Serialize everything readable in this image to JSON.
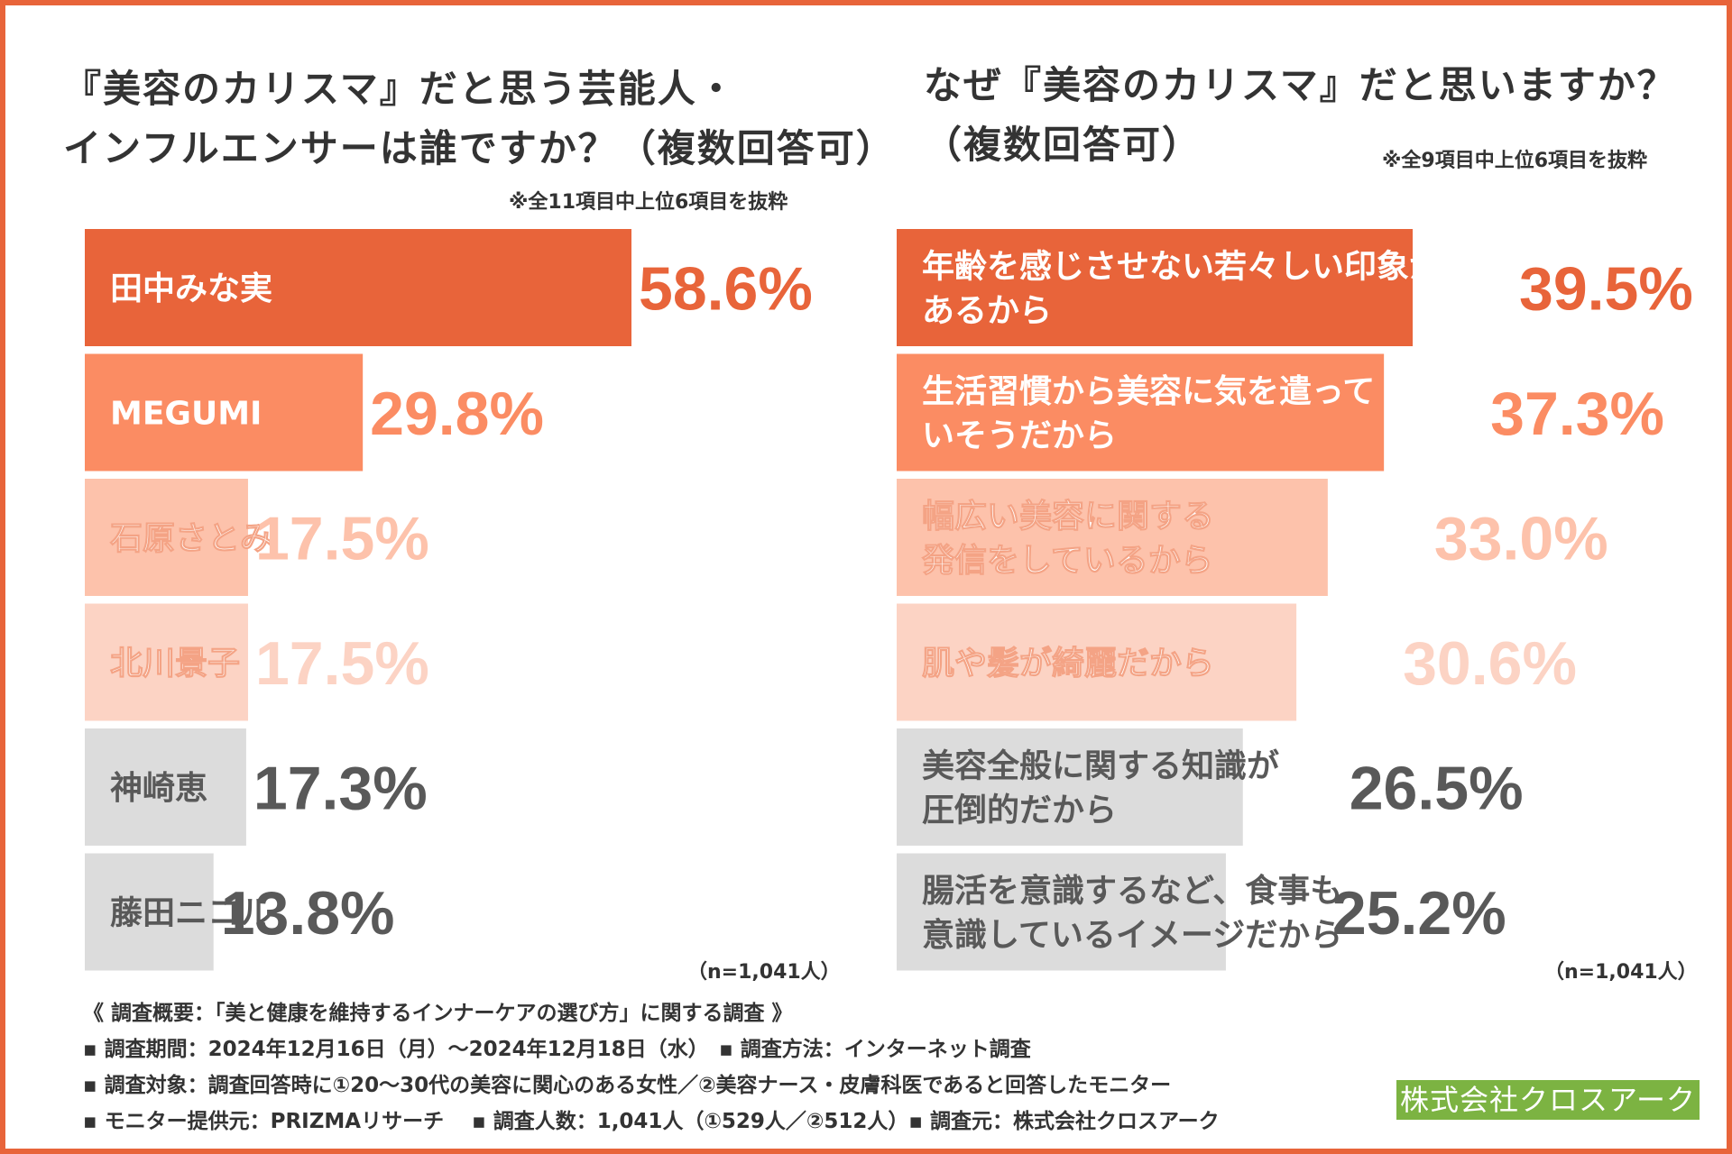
{
  "colors": {
    "frame": "#e8643a",
    "bar_tiers": [
      "#e8643a",
      "#fb8c63",
      "#fdc2ab",
      "#fcd3c4",
      "#dcdcdc"
    ],
    "value_tiers": [
      "#e8643a",
      "#fb8c63",
      "#fdc2ab",
      "#fcd3c4",
      "#595959"
    ],
    "label_on_light": "#595959",
    "company_bg": "#7cb342"
  },
  "left": {
    "title_line1": "『美容のカリスマ』だと思う芸能人・",
    "title_line2": "インフルエンサーは誰ですか？（複数回答可）",
    "note": "※全11項目中上位6項目を抜粋",
    "n_note": "（n=1,041人）"
  },
  "right": {
    "title_line1": "なぜ『美容のカリスマ』だと思いますか？",
    "title_line2": "（複数回答可）",
    "note": "※全9項目中上位6項目を抜粋",
    "n_note": "（n=1,041人）"
  },
  "chart_data": [
    {
      "type": "bar",
      "orientation": "horizontal",
      "title": "『美容のカリスマ』だと思う芸能人・インフルエンサーは誰ですか？（複数回答可）",
      "unit": "%",
      "categories": [
        "田中みな実",
        "MEGUMI",
        "石原さとみ",
        "北川景子",
        "神崎恵",
        "藤田ニコル"
      ],
      "values": [
        58.6,
        29.8,
        17.5,
        17.5,
        17.3,
        13.8
      ],
      "value_labels": [
        "58.6%",
        "29.8%",
        "17.5%",
        "17.5%",
        "17.3%",
        "13.8%"
      ],
      "tiers": [
        0,
        1,
        2,
        3,
        4,
        4
      ],
      "xlim": [
        0,
        58.6
      ]
    },
    {
      "type": "bar",
      "orientation": "horizontal",
      "title": "なぜ『美容のカリスマ』だと思いますか？（複数回答可）",
      "unit": "%",
      "categories": [
        [
          "年齢を感じさせない若々しい印象が",
          "あるから"
        ],
        [
          "生活習慣から美容に気を遣って",
          "いそうだから"
        ],
        [
          "幅広い美容に関する",
          "発信をしているから"
        ],
        [
          "肌や髪が綺麗だから"
        ],
        [
          "美容全般に関する知識が",
          "圧倒的だから"
        ],
        [
          "腸活を意識するなど、食事も",
          "意識しているイメージだから"
        ]
      ],
      "values": [
        39.5,
        37.3,
        33.0,
        30.6,
        26.5,
        25.2
      ],
      "value_labels": [
        "39.5%",
        "37.3%",
        "33.0%",
        "30.6%",
        "26.5%",
        "25.2%"
      ],
      "tiers": [
        0,
        1,
        2,
        3,
        4,
        4
      ],
      "xlim": [
        0,
        39.5
      ]
    }
  ],
  "survey": {
    "line1": "《 調査概要：「美と健康を維持するインナーケアの選び方」に関する調査 》",
    "line2": "▪ 調査期間：2024年12月16日（月）〜2024年12月18日（水）　▪ 調査方法：インターネット調査",
    "line3": "▪ 調査対象：調査回答時に①20〜30代の美容に関心のある女性／②美容ナース・皮膚科医であると回答したモニター",
    "line4": "▪ モニター提供元：PRIZMAリサーチ　 ▪ 調査人数：1,041人（①529人／②512人）▪ 調査元：株式会社クロスアーク"
  },
  "company": "株式会社クロスアーク"
}
